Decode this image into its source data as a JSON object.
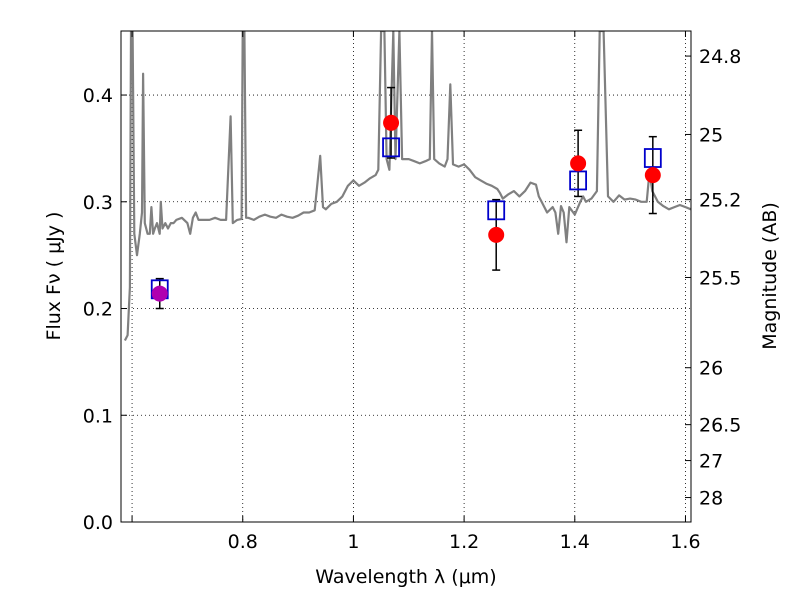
{
  "chart_data": {
    "type": "scatter",
    "title": "",
    "xlabel": "Wavelength  λ (μm)",
    "ylabel": "Flux  Fν  ( μJy )",
    "y2label": "Magnitude (AB)",
    "xlim": [
      0.58,
      1.61
    ],
    "ylim": [
      0.0,
      0.46
    ],
    "grid": true,
    "x_ticks": [
      0.6,
      0.8,
      1.0,
      1.2,
      1.4,
      1.6
    ],
    "x_tick_labels": [
      "",
      "0.8",
      "1",
      "1.2",
      "1.4",
      "1.6"
    ],
    "y_ticks": [
      0.0,
      0.1,
      0.2,
      0.3,
      0.4
    ],
    "y_tick_labels": [
      "0.0",
      "0.1",
      "0.2",
      "0.3",
      "0.4"
    ],
    "y2_ticks": [
      {
        "mag": 24.8,
        "label": "24.8"
      },
      {
        "mag": 25.0,
        "label": "25"
      },
      {
        "mag": 25.2,
        "label": "25.2"
      },
      {
        "mag": 25.5,
        "label": "25.5"
      },
      {
        "mag": 26.0,
        "label": "26"
      },
      {
        "mag": 26.5,
        "label": "26.5"
      },
      {
        "mag": 27.0,
        "label": "27"
      },
      {
        "mag": 28.0,
        "label": "28"
      }
    ],
    "series": [
      {
        "kind": "model-spectrum",
        "color": "#808080",
        "points": [
          [
            0.587,
            0.17
          ],
          [
            0.592,
            0.175
          ],
          [
            0.596,
            0.22
          ],
          [
            0.598,
            0.46
          ],
          [
            0.601,
            0.46
          ],
          [
            0.604,
            0.27
          ],
          [
            0.609,
            0.25
          ],
          [
            0.614,
            0.27
          ],
          [
            0.618,
            0.29
          ],
          [
            0.62,
            0.42
          ],
          [
            0.623,
            0.28
          ],
          [
            0.628,
            0.27
          ],
          [
            0.632,
            0.27
          ],
          [
            0.635,
            0.295
          ],
          [
            0.638,
            0.27
          ],
          [
            0.641,
            0.275
          ],
          [
            0.645,
            0.28
          ],
          [
            0.65,
            0.27
          ],
          [
            0.652,
            0.3
          ],
          [
            0.655,
            0.275
          ],
          [
            0.66,
            0.28
          ],
          [
            0.665,
            0.275
          ],
          [
            0.67,
            0.28
          ],
          [
            0.675,
            0.28
          ],
          [
            0.68,
            0.283
          ],
          [
            0.69,
            0.285
          ],
          [
            0.7,
            0.28
          ],
          [
            0.705,
            0.27
          ],
          [
            0.71,
            0.285
          ],
          [
            0.715,
            0.29
          ],
          [
            0.72,
            0.283
          ],
          [
            0.73,
            0.283
          ],
          [
            0.74,
            0.283
          ],
          [
            0.75,
            0.285
          ],
          [
            0.76,
            0.283
          ],
          [
            0.77,
            0.283
          ],
          [
            0.778,
            0.38
          ],
          [
            0.782,
            0.28
          ],
          [
            0.79,
            0.283
          ],
          [
            0.798,
            0.284
          ],
          [
            0.8,
            0.46
          ],
          [
            0.803,
            0.46
          ],
          [
            0.806,
            0.285
          ],
          [
            0.81,
            0.285
          ],
          [
            0.82,
            0.283
          ],
          [
            0.83,
            0.286
          ],
          [
            0.84,
            0.288
          ],
          [
            0.85,
            0.286
          ],
          [
            0.86,
            0.285
          ],
          [
            0.87,
            0.288
          ],
          [
            0.88,
            0.286
          ],
          [
            0.89,
            0.285
          ],
          [
            0.9,
            0.287
          ],
          [
            0.91,
            0.29
          ],
          [
            0.92,
            0.29
          ],
          [
            0.93,
            0.292
          ],
          [
            0.94,
            0.343
          ],
          [
            0.945,
            0.295
          ],
          [
            0.95,
            0.293
          ],
          [
            0.96,
            0.298
          ],
          [
            0.97,
            0.3
          ],
          [
            0.98,
            0.305
          ],
          [
            0.99,
            0.315
          ],
          [
            1.0,
            0.32
          ],
          [
            1.01,
            0.315
          ],
          [
            1.02,
            0.318
          ],
          [
            1.03,
            0.322
          ],
          [
            1.04,
            0.325
          ],
          [
            1.045,
            0.33
          ],
          [
            1.05,
            0.46
          ],
          [
            1.056,
            0.46
          ],
          [
            1.06,
            0.34
          ],
          [
            1.065,
            0.33
          ],
          [
            1.072,
            0.46
          ],
          [
            1.076,
            0.34
          ],
          [
            1.083,
            0.46
          ],
          [
            1.088,
            0.34
          ],
          [
            1.095,
            0.34
          ],
          [
            1.1,
            0.34
          ],
          [
            1.11,
            0.338
          ],
          [
            1.12,
            0.336
          ],
          [
            1.13,
            0.338
          ],
          [
            1.138,
            0.34
          ],
          [
            1.142,
            0.46
          ],
          [
            1.146,
            0.34
          ],
          [
            1.155,
            0.336
          ],
          [
            1.165,
            0.333
          ],
          [
            1.17,
            0.34
          ],
          [
            1.175,
            0.41
          ],
          [
            1.18,
            0.335
          ],
          [
            1.19,
            0.333
          ],
          [
            1.2,
            0.335
          ],
          [
            1.21,
            0.33
          ],
          [
            1.22,
            0.323
          ],
          [
            1.23,
            0.32
          ],
          [
            1.24,
            0.317
          ],
          [
            1.25,
            0.315
          ],
          [
            1.26,
            0.312
          ],
          [
            1.265,
            0.308
          ],
          [
            1.27,
            0.303
          ],
          [
            1.28,
            0.307
          ],
          [
            1.29,
            0.31
          ],
          [
            1.3,
            0.305
          ],
          [
            1.31,
            0.31
          ],
          [
            1.32,
            0.318
          ],
          [
            1.33,
            0.316
          ],
          [
            1.335,
            0.305
          ],
          [
            1.34,
            0.3
          ],
          [
            1.35,
            0.29
          ],
          [
            1.36,
            0.295
          ],
          [
            1.365,
            0.29
          ],
          [
            1.37,
            0.27
          ],
          [
            1.375,
            0.296
          ],
          [
            1.38,
            0.29
          ],
          [
            1.385,
            0.262
          ],
          [
            1.39,
            0.295
          ],
          [
            1.4,
            0.288
          ],
          [
            1.41,
            0.3
          ],
          [
            1.415,
            0.305
          ],
          [
            1.42,
            0.3
          ],
          [
            1.43,
            0.303
          ],
          [
            1.44,
            0.31
          ],
          [
            1.445,
            0.46
          ],
          [
            1.452,
            0.46
          ],
          [
            1.46,
            0.305
          ],
          [
            1.47,
            0.3
          ],
          [
            1.48,
            0.306
          ],
          [
            1.49,
            0.302
          ],
          [
            1.5,
            0.303
          ],
          [
            1.51,
            0.302
          ],
          [
            1.52,
            0.3
          ],
          [
            1.53,
            0.3
          ],
          [
            1.535,
            0.328
          ],
          [
            1.54,
            0.31
          ],
          [
            1.55,
            0.3
          ],
          [
            1.56,
            0.296
          ],
          [
            1.57,
            0.293
          ],
          [
            1.58,
            0.295
          ],
          [
            1.59,
            0.297
          ],
          [
            1.6,
            0.295
          ],
          [
            1.61,
            0.293
          ]
        ]
      },
      {
        "kind": "model-photometry",
        "marker": "open-square",
        "color": "#0000cc",
        "points": [
          [
            0.65,
            0.218
          ],
          [
            1.068,
            0.351
          ],
          [
            1.258,
            0.292
          ],
          [
            1.406,
            0.32
          ],
          [
            1.541,
            0.341
          ]
        ]
      },
      {
        "kind": "observed-photometry",
        "marker": "filled-circle",
        "color": "#ff0000",
        "points": [
          {
            "x": 0.65,
            "y": 0.214,
            "err": 0.014,
            "color": "#b000b0"
          },
          {
            "x": 1.068,
            "y": 0.374,
            "err": 0.033,
            "color": "#ff0000"
          },
          {
            "x": 1.258,
            "y": 0.269,
            "err": 0.033,
            "color": "#ff0000"
          },
          {
            "x": 1.406,
            "y": 0.336,
            "err": 0.031,
            "color": "#ff0000"
          },
          {
            "x": 1.541,
            "y": 0.325,
            "err": 0.036,
            "color": "#ff0000"
          }
        ]
      }
    ]
  }
}
